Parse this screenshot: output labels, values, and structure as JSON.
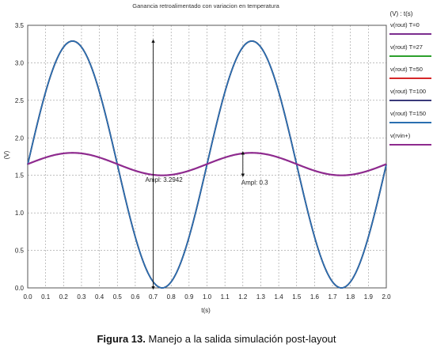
{
  "chart_data": {
    "type": "line",
    "title": "Ganancia retroalimentado con variacion en temperatura",
    "legend_header": "(V) : t(s)",
    "xlabel": "t(s)",
    "ylabel": "(V)",
    "xlim": [
      0.0,
      2.0
    ],
    "ylim": [
      0.0,
      3.5
    ],
    "x_ticks": [
      "0.0",
      "0.1",
      "0.2",
      "0.3",
      "0.4",
      "0.5",
      "0.6",
      "0.7",
      "0.8",
      "0.9",
      "1.0",
      "1.1",
      "1.2",
      "1.3",
      "1.4",
      "1.5",
      "1.6",
      "1.7",
      "1.8",
      "1.9",
      "2.0"
    ],
    "y_ticks": [
      "0.0",
      "0.5",
      "1.0",
      "1.5",
      "2.0",
      "2.5",
      "3.0",
      "3.5"
    ],
    "grid": true,
    "legend_position": "right",
    "series": [
      {
        "name": "v(rout) T=0",
        "color": "#7b2d8e",
        "x": [
          0.0,
          0.25,
          0.5,
          0.75,
          1.0,
          1.25,
          1.5,
          1.75,
          2.0
        ],
        "values": [
          1.65,
          3.29,
          1.65,
          0.0,
          1.65,
          3.29,
          1.65,
          0.0,
          1.65
        ]
      },
      {
        "name": "v(rout) T=27",
        "color": "#2ca02c",
        "x": [
          0.0,
          0.25,
          0.5,
          0.75,
          1.0,
          1.25,
          1.5,
          1.75,
          2.0
        ],
        "values": [
          1.65,
          3.29,
          1.65,
          0.0,
          1.65,
          3.29,
          1.65,
          0.0,
          1.65
        ]
      },
      {
        "name": "v(rout) T=50",
        "color": "#d62728",
        "x": [
          0.0,
          0.25,
          0.5,
          0.75,
          1.0,
          1.25,
          1.5,
          1.75,
          2.0
        ],
        "values": [
          1.65,
          3.29,
          1.65,
          0.0,
          1.65,
          3.29,
          1.65,
          0.0,
          1.65
        ]
      },
      {
        "name": "v(rout) T=100",
        "color": "#3a3a7a",
        "x": [
          0.0,
          0.25,
          0.5,
          0.75,
          1.0,
          1.25,
          1.5,
          1.75,
          2.0
        ],
        "values": [
          1.65,
          3.29,
          1.65,
          0.0,
          1.65,
          3.29,
          1.65,
          0.0,
          1.65
        ]
      },
      {
        "name": "v(rout) T=150",
        "color": "#2a6fb0",
        "x": [
          0.0,
          0.25,
          0.5,
          0.75,
          1.0,
          1.25,
          1.5,
          1.75,
          2.0
        ],
        "values": [
          1.65,
          3.29,
          1.65,
          0.0,
          1.65,
          3.29,
          1.65,
          0.0,
          1.65
        ]
      },
      {
        "name": "v(rvin+)",
        "color": "#8e2a8e",
        "x": [
          0.0,
          0.25,
          0.5,
          0.75,
          1.0,
          1.25,
          1.5,
          1.75,
          2.0
        ],
        "values": [
          1.65,
          1.8,
          1.65,
          1.5,
          1.65,
          1.8,
          1.65,
          1.5,
          1.65
        ]
      }
    ],
    "annotations": [
      {
        "text": "Ampl: 3.2942",
        "x": 0.7,
        "y_from": 0.0,
        "y_to": 3.29
      },
      {
        "text": "Ampl: 0.3",
        "x": 1.2,
        "y_from": 1.5,
        "y_to": 1.8
      }
    ]
  },
  "caption": {
    "label": "Figura 13.",
    "text": " Manejo a la salida simulación post-layout"
  }
}
